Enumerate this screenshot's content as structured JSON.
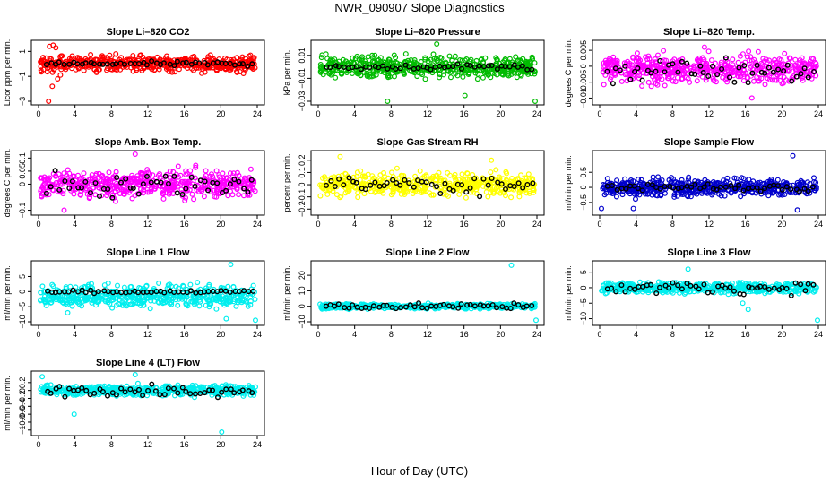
{
  "figure": {
    "title": "NWR_090907  Slope Diagnostics",
    "xlabel": "Hour of Day (UTC)"
  },
  "chart_data": [
    {
      "type": "scatter",
      "title": "Slope Li–820 CO2",
      "ylabel": "Licor ppm per min.",
      "color": "#ff0000",
      "xlim": [
        0,
        24
      ],
      "ylim": [
        -3,
        1.6
      ],
      "xticks": [
        0,
        4,
        8,
        12,
        16,
        20,
        24
      ],
      "yticks": [
        -3,
        -1,
        1
      ],
      "spread": 0.6,
      "outliers": [
        [
          1.2,
          1.4
        ],
        [
          1.6,
          1.5
        ],
        [
          1.9,
          1.3
        ],
        [
          1.5,
          -1.8
        ],
        [
          2.1,
          -1.2
        ],
        [
          1.1,
          -3.0
        ],
        [
          2.4,
          -0.9
        ]
      ],
      "black_series_spread": 0.15,
      "black_offset": 0.0
    },
    {
      "type": "scatter",
      "title": "Slope Li–820 Pressure",
      "ylabel": "kPa per min.",
      "color": "#00bb00",
      "xlim": [
        0,
        24
      ],
      "ylim": [
        -0.03,
        0.02
      ],
      "xticks": [
        0,
        4,
        8,
        12,
        16,
        20,
        24
      ],
      "yticks": [
        -0.03,
        -0.01,
        0.01
      ],
      "spread": 0.009,
      "outliers": [
        [
          7.6,
          -0.03
        ],
        [
          16.1,
          -0.025
        ],
        [
          23.8,
          -0.031
        ],
        [
          13,
          0.02
        ]
      ],
      "black_series_spread": 0.002,
      "black_offset": 0.0
    },
    {
      "type": "scatter",
      "title": "Slope Li–820 Temp.",
      "ylabel": "degrees C per min.",
      "color": "#ff00ff",
      "xlim": [
        0,
        24
      ],
      "ylim": [
        -0.011,
        0.007
      ],
      "xticks": [
        0,
        4,
        8,
        12,
        16,
        20,
        24
      ],
      "yticks": [
        -0.01,
        -0.005,
        0,
        0.005
      ],
      "spread": 0.004,
      "outliers": [
        [
          11.5,
          0.006
        ],
        [
          16.7,
          -0.01
        ]
      ],
      "black_series_spread": 0.003,
      "black_offset": -0.001
    },
    {
      "type": "scatter",
      "title": "Slope Amb. Box Temp.",
      "ylabel": "degrees C per min.",
      "color": "#ff00ff",
      "xlim": [
        0,
        24
      ],
      "ylim": [
        -0.105,
        0.115
      ],
      "xticks": [
        0,
        4,
        8,
        12,
        16,
        20,
        24
      ],
      "yticks": [
        -0.1,
        0,
        0.05,
        0.1
      ],
      "spread": 0.05,
      "outliers": [
        [
          10.6,
          0.12
        ],
        [
          2.8,
          -0.1
        ]
      ],
      "black_series_spread": 0.04,
      "black_offset": 0.0
    },
    {
      "type": "scatter",
      "title": "Slope Gas Stream RH",
      "ylabel": "percent per min.",
      "color": "#ffff00",
      "xlim": [
        0,
        24
      ],
      "ylim": [
        -0.22,
        0.25
      ],
      "xticks": [
        0,
        4,
        8,
        12,
        16,
        20,
        24
      ],
      "yticks": [
        -0.2,
        -0.1,
        0,
        0.1,
        0.2
      ],
      "spread": 0.09,
      "outliers": [
        [
          2.4,
          0.23
        ],
        [
          19,
          0.2
        ]
      ],
      "black_series_spread": 0.06,
      "black_offset": 0.0
    },
    {
      "type": "scatter",
      "title": "Slope Sample Flow",
      "ylabel": "ml/min per min.",
      "color": "#0000cc",
      "xlim": [
        0,
        24
      ],
      "ylim": [
        -0.8,
        1.1
      ],
      "xticks": [
        0,
        4,
        8,
        12,
        16,
        20,
        24
      ],
      "yticks": [
        -0.5,
        0,
        0.5
      ],
      "spread": 0.28,
      "outliers": [
        [
          21.2,
          1.05
        ],
        [
          0.2,
          -0.7
        ],
        [
          21.7,
          -0.75
        ],
        [
          3.7,
          -0.7
        ]
      ],
      "black_series_spread": 0.1,
      "black_offset": 0.0
    },
    {
      "type": "scatter",
      "title": "Slope Line 1 Flow",
      "ylabel": "ml/min per min.",
      "color": "#00eeee",
      "xlim": [
        0,
        24
      ],
      "ylim": [
        -10,
        9
      ],
      "xticks": [
        0,
        4,
        8,
        12,
        16,
        20,
        24
      ],
      "yticks": [
        -10,
        -5,
        0,
        5
      ],
      "spread": 2.5,
      "outliers": [
        [
          21.1,
          9
        ],
        [
          23.8,
          -9.5
        ],
        [
          20.6,
          -9
        ],
        [
          3.2,
          -7
        ]
      ],
      "black_series_spread": 0.4,
      "black_offset": 0.0
    },
    {
      "type": "scatter",
      "title": "Slope Line 2 Flow",
      "ylabel": "ml/min per min.",
      "color": "#00eeee",
      "xlim": [
        0,
        24
      ],
      "ylim": [
        -10,
        27
      ],
      "xticks": [
        0,
        4,
        8,
        12,
        16,
        20,
        24
      ],
      "yticks": [
        -10,
        0,
        10,
        20
      ],
      "spread": 1.5,
      "outliers": [
        [
          21.2,
          26.5
        ],
        [
          23.9,
          -9
        ]
      ],
      "black_series_spread": 1.5,
      "black_offset": 0.0
    },
    {
      "type": "scatter",
      "title": "Slope Line 3 Flow",
      "ylabel": "ml/min per min.",
      "color": "#00eeee",
      "xlim": [
        0,
        24
      ],
      "ylim": [
        -11,
        7.5
      ],
      "xticks": [
        0,
        4,
        8,
        12,
        16,
        20,
        24
      ],
      "yticks": [
        -10,
        -5,
        0,
        5
      ],
      "spread": 1.6,
      "outliers": [
        [
          15.7,
          -5
        ],
        [
          16.3,
          -7
        ],
        [
          23.9,
          -10.5
        ],
        [
          9.7,
          6
        ]
      ],
      "black_series_spread": 1.5,
      "black_offset": 0.0
    },
    {
      "type": "scatter",
      "title": "Slope Line 4 (LT) Flow",
      "ylabel": "ml/min per min.",
      "color": "#00eeee",
      "xlim": [
        0,
        24
      ],
      "ylim": [
        -1.05,
        0.4
      ],
      "xticks": [
        0,
        4,
        8,
        12,
        16,
        20,
        24
      ],
      "yticks": [
        -1,
        -0.8,
        -0.6,
        -0.4,
        -0.2,
        0,
        0.2
      ],
      "spread": 0.13,
      "outliers": [
        [
          3.9,
          -0.6
        ],
        [
          20.1,
          -1.05
        ],
        [
          0.4,
          0.35
        ],
        [
          10.6,
          0.4
        ]
      ],
      "black_series_spread": 0.13,
      "black_offset": 0.0
    }
  ]
}
